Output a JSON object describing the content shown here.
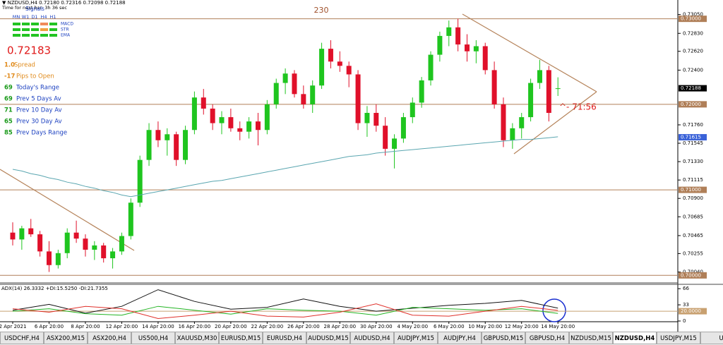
{
  "header": {
    "symbol_line": "▼ NZDUSD,H4  0.72180 0.72316 0.72098 0.72188",
    "timer_line": "Time for next bar: 3h 36 sec",
    "signals_title": "Signals",
    "timeframes": [
      "MN",
      "W1",
      "D1",
      "H4",
      "H1"
    ],
    "indicators": [
      "MACD",
      "STR",
      "EMA"
    ]
  },
  "price": "0.72183",
  "stats": [
    {
      "value": "1.0",
      "label": "Spread"
    },
    {
      "value": "-17",
      "label": "Pips to Open"
    },
    {
      "value": "69",
      "label": "Today's Range"
    },
    {
      "value": "69",
      "label": "Prev 5 Days Av"
    },
    {
      "value": "71",
      "label": "Prev 10 Day Av"
    },
    {
      "value": "65",
      "label": "Prev 30 Day Av"
    },
    {
      "value": "85",
      "label": "Prev Days Range"
    }
  ],
  "annotations": {
    "range": "230",
    "countdown": "^- 71:56"
  },
  "chart_data": [
    {
      "type": "candlestick",
      "open": [
        0.705,
        0.7042,
        0.7055,
        0.7048,
        0.7028,
        0.7012,
        0.7026,
        0.705,
        0.7043,
        0.703,
        0.7035,
        0.702,
        0.7028,
        0.7046,
        0.7085,
        0.7135,
        0.717,
        0.7158,
        0.7165,
        0.7135,
        0.717,
        0.7208,
        0.7195,
        0.7178,
        0.7185,
        0.7172,
        0.7168,
        0.718,
        0.717,
        0.72,
        0.7225,
        0.7236,
        0.7212,
        0.72,
        0.7222,
        0.7265,
        0.725,
        0.7245,
        0.7235,
        0.7178,
        0.719,
        0.7175,
        0.7148,
        0.716,
        0.7185,
        0.7202,
        0.7228,
        0.7258,
        0.728,
        0.729,
        0.727,
        0.7262,
        0.7268,
        0.724,
        0.72,
        0.7158,
        0.7172,
        0.7185,
        0.7225,
        0.724,
        0.7218
      ],
      "high": [
        0.7062,
        0.7058,
        0.7066,
        0.7052,
        0.704,
        0.703,
        0.7055,
        0.7064,
        0.7048,
        0.704,
        0.7038,
        0.7032,
        0.705,
        0.709,
        0.714,
        0.7178,
        0.718,
        0.7172,
        0.7168,
        0.7175,
        0.7215,
        0.7218,
        0.72,
        0.7192,
        0.7195,
        0.718,
        0.7185,
        0.719,
        0.7205,
        0.723,
        0.7242,
        0.724,
        0.7222,
        0.7228,
        0.7272,
        0.7275,
        0.7262,
        0.725,
        0.724,
        0.7198,
        0.72,
        0.7185,
        0.7165,
        0.719,
        0.7208,
        0.7232,
        0.7262,
        0.7285,
        0.7298,
        0.73,
        0.7282,
        0.7275,
        0.7272,
        0.725,
        0.7208,
        0.7178,
        0.719,
        0.723,
        0.7252,
        0.7245,
        0.72316
      ],
      "low": [
        0.7035,
        0.703,
        0.7045,
        0.7022,
        0.7004,
        0.7008,
        0.702,
        0.7038,
        0.7022,
        0.7018,
        0.7015,
        0.7008,
        0.7024,
        0.7042,
        0.708,
        0.7128,
        0.715,
        0.714,
        0.7128,
        0.713,
        0.7165,
        0.7188,
        0.717,
        0.7165,
        0.7168,
        0.7158,
        0.716,
        0.7152,
        0.7165,
        0.7195,
        0.7212,
        0.7208,
        0.7195,
        0.719,
        0.7218,
        0.7242,
        0.7238,
        0.722,
        0.717,
        0.7162,
        0.7168,
        0.714,
        0.7125,
        0.7155,
        0.7178,
        0.7196,
        0.7222,
        0.725,
        0.7268,
        0.7262,
        0.725,
        0.7248,
        0.7235,
        0.7195,
        0.715,
        0.7148,
        0.716,
        0.718,
        0.7218,
        0.718,
        0.72098
      ],
      "close": [
        0.7042,
        0.7055,
        0.7048,
        0.7028,
        0.7012,
        0.7026,
        0.705,
        0.7043,
        0.703,
        0.7035,
        0.702,
        0.7028,
        0.7046,
        0.7085,
        0.7135,
        0.717,
        0.7158,
        0.7165,
        0.7135,
        0.717,
        0.7208,
        0.7195,
        0.7178,
        0.7185,
        0.7172,
        0.7168,
        0.718,
        0.717,
        0.72,
        0.7225,
        0.7236,
        0.7212,
        0.72,
        0.7222,
        0.7265,
        0.725,
        0.7245,
        0.7235,
        0.7178,
        0.719,
        0.7175,
        0.7148,
        0.716,
        0.7185,
        0.7202,
        0.7228,
        0.7258,
        0.728,
        0.729,
        0.727,
        0.7262,
        0.7268,
        0.724,
        0.72,
        0.7158,
        0.7172,
        0.7185,
        0.7225,
        0.724,
        0.719,
        0.72188
      ],
      "up_color": "#1fc51f",
      "down_color": "#e0102a",
      "ma": {
        "color": "#5aa6b0",
        "values": [
          0.7124,
          0.7122,
          0.7119,
          0.7117,
          0.7114,
          0.7112,
          0.7109,
          0.7107,
          0.7104,
          0.7102,
          0.7099,
          0.7097,
          0.7094,
          0.7092,
          0.7094,
          0.7096,
          0.7098,
          0.71,
          0.7102,
          0.7104,
          0.7106,
          0.7108,
          0.711,
          0.7111,
          0.7113,
          0.7115,
          0.7117,
          0.7119,
          0.7121,
          0.7123,
          0.7125,
          0.7127,
          0.7129,
          0.7131,
          0.7133,
          0.7135,
          0.7137,
          0.7139,
          0.714,
          0.7141,
          0.7143,
          0.7144,
          0.7145,
          0.7146,
          0.7147,
          0.7148,
          0.7149,
          0.715,
          0.7151,
          0.7152,
          0.7153,
          0.7154,
          0.7155,
          0.7156,
          0.7157,
          0.7158,
          0.7159,
          0.7159,
          0.716,
          0.7161,
          0.7162
        ]
      },
      "levels": [
        {
          "value": 0.73,
          "label": "0.73000"
        },
        {
          "value": 0.72,
          "label": "0.72000"
        },
        {
          "value": 0.71,
          "label": "0.71000"
        },
        {
          "value": 0.7,
          "label": "0.70000"
        }
      ],
      "level_color": "#b07f58",
      "ma_label": {
        "value": 0.71615,
        "label": "0.71615"
      },
      "last": {
        "value": 0.72188,
        "label": "0.72188"
      },
      "ylim": [
        0.6992,
        0.7322
      ],
      "yticks": [
        {
          "value": 0.7305,
          "label": "0.73050"
        },
        {
          "value": 0.7283,
          "label": "0.72830"
        },
        {
          "value": 0.7262,
          "label": "0.72620"
        },
        {
          "value": 0.724,
          "label": "0.72400"
        },
        {
          "value": 0.7176,
          "label": "0.71760"
        },
        {
          "value": 0.71545,
          "label": "0.71545"
        },
        {
          "value": 0.7133,
          "label": "0.71330"
        },
        {
          "value": 0.71115,
          "label": "0.71115"
        },
        {
          "value": 0.709,
          "label": "0.70900"
        },
        {
          "value": 0.70685,
          "label": "0.70685"
        },
        {
          "value": 0.70465,
          "label": "0.70465"
        },
        {
          "value": 0.70255,
          "label": "0.70255"
        },
        {
          "value": 0.7004,
          "label": "0.70040"
        }
      ]
    },
    {
      "type": "line",
      "title": "ADX(14) 26.3332 +DI:15.5250 -DI:21.7355",
      "categories": [
        "2 Apr 2021",
        "6 Apr 20:00",
        "8 Apr 20:00",
        "12 Apr 20:00",
        "14 Apr 20:00",
        "16 Apr 20:00",
        "20 Apr 20:00",
        "22 Apr 20:00",
        "26 Apr 20:00",
        "28 Apr 20:00",
        "30 Apr 20:00",
        "4 May 20:00",
        "6 May 20:00",
        "10 May 20:00",
        "12 May 20:00",
        "14 May 20:00"
      ],
      "series": [
        {
          "name": "ADX",
          "color": "#111111",
          "values": [
            22,
            34,
            16,
            30,
            64,
            40,
            24,
            28,
            45,
            30,
            20,
            26,
            32,
            36,
            42,
            26.3332
          ]
        },
        {
          "name": "+DI",
          "color": "#22b422",
          "values": [
            20,
            25,
            15,
            12,
            30,
            22,
            14,
            25,
            22,
            20,
            12,
            28,
            25,
            22,
            25,
            15.525
          ]
        },
        {
          "name": "-DI",
          "color": "#e0302a",
          "values": [
            25,
            18,
            30,
            25,
            5,
            12,
            20,
            10,
            8,
            18,
            35,
            12,
            10,
            20,
            30,
            21.7355
          ]
        }
      ],
      "level": {
        "value": 20,
        "label": "20.0000"
      },
      "ylim": [
        0,
        72
      ],
      "yticks": [
        66,
        33,
        0
      ]
    }
  ],
  "tabs": {
    "items": [
      "USDCHF,H4",
      "ASX200,M15",
      "ASX200,H4",
      "US500,H4",
      "XAUUSD,M30",
      "EURUSD,M15",
      "EURUSD,H4",
      "AUDUSD,M15",
      "AUDUSD,H4",
      "AUDJPY,M15",
      "AUDJPY,H4",
      "GBPUSD,M15",
      "GBPUSD,H4",
      "NZDUSD,M15",
      "NZDUSD,H4",
      "USDJPY,M15",
      "U:"
    ],
    "active": 14
  }
}
